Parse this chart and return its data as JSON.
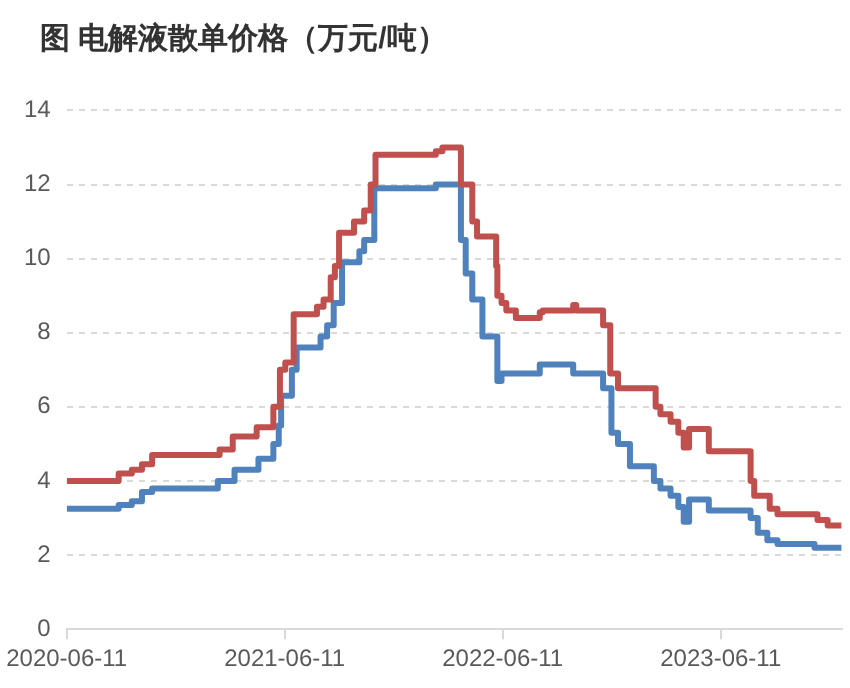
{
  "chart_data": {
    "type": "step",
    "title": "图 电解液散单价格（万元/吨）",
    "xlim": [
      "2020-06-11",
      "2023-12-31"
    ],
    "xticks": [
      "2020-06-11",
      "2021-06-11",
      "2022-06-11",
      "2023-06-11"
    ],
    "ylim": [
      0,
      14
    ],
    "yticks": [
      0,
      2,
      4,
      6,
      8,
      10,
      12,
      14
    ],
    "grid": "y",
    "legend": false,
    "line_style": "solid",
    "marker": "none",
    "series": [
      {
        "color": "#c0504d",
        "x": [
          "2020-06-11",
          "2020-09-06",
          "2020-09-28",
          "2020-10-15",
          "2020-11-01",
          "2021-02-22",
          "2021-03-16",
          "2021-04-25",
          "2021-05-23",
          "2021-06-03",
          "2021-06-12",
          "2021-06-26",
          "2021-08-04",
          "2021-08-15",
          "2021-08-27",
          "2021-09-03",
          "2021-09-10",
          "2021-10-05",
          "2021-10-22",
          "2021-11-02",
          "2021-11-10",
          "2022-02-19",
          "2022-03-02",
          "2022-04-02",
          "2022-04-21",
          "2022-04-29",
          "2022-05-31",
          "2022-06-02",
          "2022-06-09",
          "2022-06-17",
          "2022-07-03",
          "2022-08-12",
          "2022-08-17",
          "2022-10-07",
          "2022-10-12",
          "2022-11-26",
          "2022-12-08",
          "2022-12-21",
          "2023-02-22",
          "2023-03-02",
          "2023-03-19",
          "2023-04-01",
          "2023-04-10",
          "2023-04-19",
          "2023-05-22",
          "2023-07-31",
          "2023-08-06",
          "2023-09-01",
          "2023-09-14",
          "2023-11-20",
          "2023-12-07",
          "2023-12-24",
          "2023-12-30"
        ],
        "values": [
          4.0,
          4.2,
          4.3,
          4.45,
          4.7,
          4.85,
          5.2,
          5.45,
          6.0,
          7.0,
          7.2,
          8.5,
          8.7,
          8.9,
          9.5,
          9.8,
          10.7,
          11.0,
          11.3,
          12.0,
          12.8,
          12.9,
          13.0,
          12.0,
          11.0,
          10.6,
          9.8,
          9.0,
          8.8,
          8.6,
          8.4,
          8.55,
          8.6,
          8.75,
          8.6,
          8.2,
          6.9,
          6.5,
          6.0,
          5.8,
          5.6,
          5.3,
          4.9,
          5.4,
          4.8,
          4.0,
          3.6,
          3.25,
          3.1,
          2.95,
          2.8,
          2.8,
          2.8
        ]
      },
      {
        "color": "#4f81bd",
        "x": [
          "2020-06-11",
          "2020-09-06",
          "2020-09-28",
          "2020-10-15",
          "2020-11-01",
          "2021-02-19",
          "2021-03-19",
          "2021-04-28",
          "2021-05-23",
          "2021-06-01",
          "2021-06-05",
          "2021-06-23",
          "2021-07-01",
          "2021-08-10",
          "2021-08-21",
          "2021-09-01",
          "2021-09-15",
          "2021-10-14",
          "2021-10-22",
          "2021-11-08",
          "2022-02-19",
          "2022-04-02",
          "2022-04-10",
          "2022-04-21",
          "2022-05-08",
          "2022-06-02",
          "2022-06-09",
          "2022-08-12",
          "2022-10-07",
          "2022-11-26",
          "2022-12-10",
          "2022-12-21",
          "2023-01-10",
          "2023-02-19",
          "2023-03-02",
          "2023-03-19",
          "2023-04-01",
          "2023-04-10",
          "2023-04-19",
          "2023-05-22",
          "2023-07-31",
          "2023-08-12",
          "2023-08-28",
          "2023-09-14",
          "2023-11-15",
          "2023-12-07",
          "2023-12-30"
        ],
        "values": [
          3.25,
          3.35,
          3.45,
          3.7,
          3.8,
          4.0,
          4.3,
          4.6,
          5.0,
          5.5,
          6.3,
          7.0,
          7.6,
          7.9,
          8.2,
          8.8,
          9.9,
          10.2,
          10.5,
          11.9,
          12.0,
          10.5,
          9.6,
          8.9,
          7.9,
          6.7,
          6.9,
          7.14,
          6.9,
          6.5,
          5.3,
          5.0,
          4.4,
          4.0,
          3.8,
          3.6,
          3.3,
          2.9,
          3.5,
          3.2,
          3.0,
          2.6,
          2.4,
          2.3,
          2.2,
          2.2,
          2.2
        ]
      }
    ]
  }
}
